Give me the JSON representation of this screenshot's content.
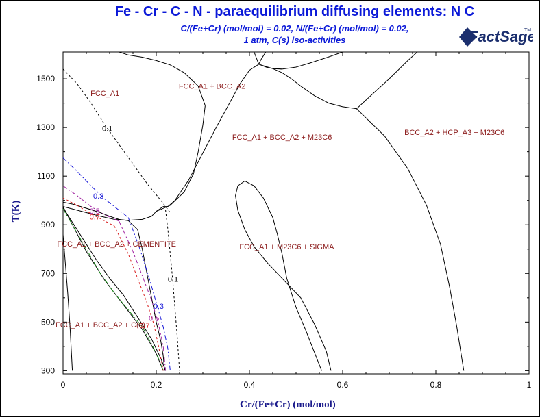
{
  "title": "Fe - Cr - C - N  -  paraequilibrium diffusing elements: N C",
  "subtitle1": "C/(Fe+Cr) (mol/mol)  = 0.02,  N/(Fe+Cr) (mol/mol)  = 0.02,",
  "subtitle2": "1 atm, C(s) iso-activities",
  "logo": {
    "text": "FactSage",
    "tm": "TM",
    "color": "#1c2f6e"
  },
  "chart_data": {
    "type": "line",
    "xlabel": "Cr/(Fe+Cr) (mol/mol)",
    "ylabel": "T(K)",
    "xlim": [
      0,
      1
    ],
    "ylim": [
      287,
      1610
    ],
    "xticks": [
      0,
      0.2,
      0.4,
      0.6,
      0.8,
      1
    ],
    "xtick_labels": [
      "0",
      "0.2",
      "0.4",
      "0.6",
      "0.8",
      "1"
    ],
    "yticks": [
      300,
      500,
      700,
      900,
      1100,
      1300,
      1500
    ],
    "ytick_labels": [
      "300",
      "500",
      "700",
      "900",
      "1100",
      "1300",
      "1500"
    ],
    "phase_labels": [
      {
        "text": "FCC_A1",
        "x": 0.09,
        "y": 1430
      },
      {
        "text": "FCC_A1 + BCC_A2",
        "x": 0.32,
        "y": 1460
      },
      {
        "text": "FCC_A1 + BCC_A2 + M23C6",
        "x": 0.47,
        "y": 1250
      },
      {
        "text": "BCC_A2 + HCP_A3 + M23C6",
        "x": 0.84,
        "y": 1270
      },
      {
        "text": "FCC_A1 + BCC_A2 + CEMENTITE",
        "x": 0.115,
        "y": 810
      },
      {
        "text": "FCC_A1 + M23C6 + SIGMA",
        "x": 0.48,
        "y": 800
      },
      {
        "text": "FCC_A1 + BCC_A2 + C(s)",
        "x": 0.08,
        "y": 478
      }
    ],
    "activity_labels": [
      {
        "text": "0.1",
        "x": 0.095,
        "y": 1285,
        "color": "#000000"
      },
      {
        "text": "0.1",
        "x": 0.236,
        "y": 665,
        "color": "#000000"
      },
      {
        "text": "0.3",
        "x": 0.076,
        "y": 1008,
        "color": "#1a1ad8"
      },
      {
        "text": "0.3",
        "x": 0.205,
        "y": 555,
        "color": "#1a1ad8"
      },
      {
        "text": "0.5",
        "x": 0.068,
        "y": 945,
        "color": "#a020a0"
      },
      {
        "text": "0.5",
        "x": 0.195,
        "y": 505,
        "color": "#a020a0"
      },
      {
        "text": "0.7",
        "x": 0.068,
        "y": 922,
        "color": "#d81a1a"
      },
      {
        "text": "0.7",
        "x": 0.175,
        "y": 475,
        "color": "#d81a1a"
      }
    ],
    "series": [
      {
        "style": "solid",
        "color": "#000000",
        "x": [
          0.0,
          0.02,
          0.05,
          0.08,
          0.11,
          0.14,
          0.17,
          0.19,
          0.2
        ],
        "y": [
          975,
          965,
          950,
          935,
          922,
          918,
          922,
          935,
          955
        ]
      },
      {
        "style": "solid",
        "color": "#000000",
        "x": [
          0.0,
          0.02,
          0.05,
          0.08,
          0.1,
          0.12,
          0.14
        ],
        "y": [
          993,
          985,
          968,
          950,
          935,
          922,
          917
        ]
      },
      {
        "style": "solid",
        "color": "#000000",
        "x": [
          0.2,
          0.23,
          0.26,
          0.28,
          0.29,
          0.3,
          0.305
        ],
        "y": [
          955,
          980,
          1035,
          1110,
          1200,
          1310,
          1390
        ]
      },
      {
        "style": "solid",
        "color": "#000000",
        "x": [
          0.305,
          0.29,
          0.26,
          0.23,
          0.2,
          0.17,
          0.14,
          0.12
        ],
        "y": [
          1390,
          1470,
          1525,
          1557,
          1575,
          1589,
          1598,
          1610
        ]
      },
      {
        "style": "solid",
        "color": "#000000",
        "x": [
          0.2,
          0.215,
          0.225,
          0.24,
          0.27,
          0.3,
          0.33,
          0.36,
          0.38,
          0.4,
          0.42,
          0.45,
          0.47
        ],
        "y": [
          955,
          975,
          975,
          1000,
          1085,
          1195,
          1305,
          1410,
          1480,
          1535,
          1560,
          1542,
          1540
        ]
      },
      {
        "style": "solid",
        "color": "#000000",
        "x": [
          0.42,
          0.44,
          0.47,
          0.5,
          0.53,
          0.57,
          0.6,
          0.63
        ],
        "y": [
          1560,
          1545,
          1540,
          1548,
          1565,
          1590,
          1610,
          1610
        ]
      },
      {
        "style": "solid",
        "color": "#000000",
        "x": [
          0.42,
          0.425,
          0.43,
          0.435
        ],
        "y": [
          1560,
          1580,
          1595,
          1610
        ]
      },
      {
        "style": "solid",
        "color": "#000000",
        "x": [
          0.41,
          0.42
        ],
        "y": [
          1610,
          1560
        ]
      },
      {
        "style": "solid",
        "color": "#000000",
        "x": [
          0.45,
          0.47,
          0.49,
          0.51,
          0.54,
          0.57,
          0.6,
          0.63
        ],
        "y": [
          1542,
          1525,
          1500,
          1470,
          1430,
          1400,
          1385,
          1377
        ]
      },
      {
        "style": "solid",
        "color": "#000000",
        "x": [
          0.63,
          0.66,
          0.7,
          0.74,
          0.76
        ],
        "y": [
          1377,
          1430,
          1500,
          1575,
          1610
        ]
      },
      {
        "style": "solid",
        "color": "#000000",
        "x": [
          0.63,
          0.69,
          0.74,
          0.78,
          0.81,
          0.83,
          0.845,
          0.855,
          0.86
        ],
        "y": [
          1377,
          1265,
          1130,
          980,
          820,
          640,
          480,
          360,
          300
        ]
      },
      {
        "style": "solid",
        "color": "#000000",
        "x": [
          0.555,
          0.52,
          0.5,
          0.48,
          0.47,
          0.46,
          0.45,
          0.43,
          0.41,
          0.39,
          0.375,
          0.37,
          0.375,
          0.39,
          0.41,
          0.44,
          0.47,
          0.51,
          0.54,
          0.565,
          0.575
        ],
        "y": [
          300,
          470,
          560,
          680,
          780,
          860,
          930,
          1010,
          1060,
          1080,
          1060,
          1020,
          960,
          880,
          810,
          740,
          680,
          600,
          490,
          380,
          300
        ]
      },
      {
        "style": "solid",
        "color": "#000000",
        "x": [
          0.0,
          0.005,
          0.01,
          0.015,
          0.02
        ],
        "y": [
          860,
          740,
          620,
          480,
          300
        ]
      },
      {
        "style": "solid",
        "color": "#000000",
        "x": [
          0.0,
          0.03,
          0.07,
          0.1,
          0.13,
          0.16,
          0.19,
          0.21,
          0.22
        ],
        "y": [
          970,
          880,
          760,
          680,
          610,
          520,
          430,
          350,
          300
        ]
      },
      {
        "style": "solid",
        "color": "#000000",
        "x": [
          0.14,
          0.16,
          0.17,
          0.18,
          0.19,
          0.2,
          0.21,
          0.215,
          0.218
        ],
        "y": [
          917,
          880,
          800,
          700,
          600,
          500,
          420,
          360,
          300
        ]
      },
      {
        "style": "solid",
        "color": "#000000",
        "x": [
          0.0,
          0.02,
          0.05,
          0.09,
          0.13,
          0.17,
          0.2,
          0.215
        ],
        "y": [
          975,
          900,
          790,
          670,
          570,
          470,
          370,
          300
        ]
      },
      {
        "style": "dashed",
        "color": "#000000",
        "x": [
          0.0,
          0.03,
          0.06,
          0.09,
          0.12,
          0.15,
          0.18,
          0.21,
          0.23
        ],
        "y": [
          1540,
          1480,
          1400,
          1310,
          1230,
          1150,
          1070,
          1000,
          950
        ]
      },
      {
        "style": "dashed",
        "color": "#000000",
        "x": [
          0.22,
          0.225,
          0.23,
          0.235,
          0.24,
          0.245,
          0.25
        ],
        "y": [
          960,
          880,
          780,
          680,
          560,
          440,
          300
        ]
      },
      {
        "style": "dashdot",
        "color": "#1a1ad8",
        "x": [
          0.0,
          0.03,
          0.06,
          0.09,
          0.12,
          0.14
        ],
        "y": [
          1175,
          1120,
          1060,
          1005,
          960,
          930
        ]
      },
      {
        "style": "dashdot",
        "color": "#1a1ad8",
        "x": [
          0.14,
          0.165,
          0.185,
          0.2,
          0.215,
          0.225,
          0.23
        ],
        "y": [
          930,
          800,
          680,
          580,
          480,
          390,
          300
        ]
      },
      {
        "style": "dashdot",
        "color": "#a020a0",
        "x": [
          0.0,
          0.03,
          0.06,
          0.09,
          0.12
        ],
        "y": [
          1060,
          1020,
          975,
          940,
          915
        ]
      },
      {
        "style": "dashdot",
        "color": "#a020a0",
        "x": [
          0.12,
          0.15,
          0.17,
          0.19,
          0.205,
          0.215,
          0.22
        ],
        "y": [
          915,
          790,
          690,
          590,
          490,
          400,
          300
        ]
      },
      {
        "style": "dashed",
        "color": "#d81a1a",
        "x": [
          0.0,
          0.03,
          0.06,
          0.09,
          0.11
        ],
        "y": [
          1010,
          980,
          945,
          915,
          895
        ]
      },
      {
        "style": "dashed",
        "color": "#d81a1a",
        "x": [
          0.11,
          0.14,
          0.16,
          0.18,
          0.195,
          0.205,
          0.215
        ],
        "y": [
          895,
          780,
          680,
          580,
          490,
          400,
          300
        ]
      },
      {
        "style": "dashdot",
        "color": "#1a8a1a",
        "x": [
          0.0,
          0.02,
          0.05,
          0.08,
          0.11,
          0.14,
          0.17,
          0.19,
          0.205,
          0.215
        ],
        "y": [
          965,
          900,
          800,
          700,
          620,
          550,
          480,
          410,
          350,
          300
        ]
      }
    ]
  }
}
